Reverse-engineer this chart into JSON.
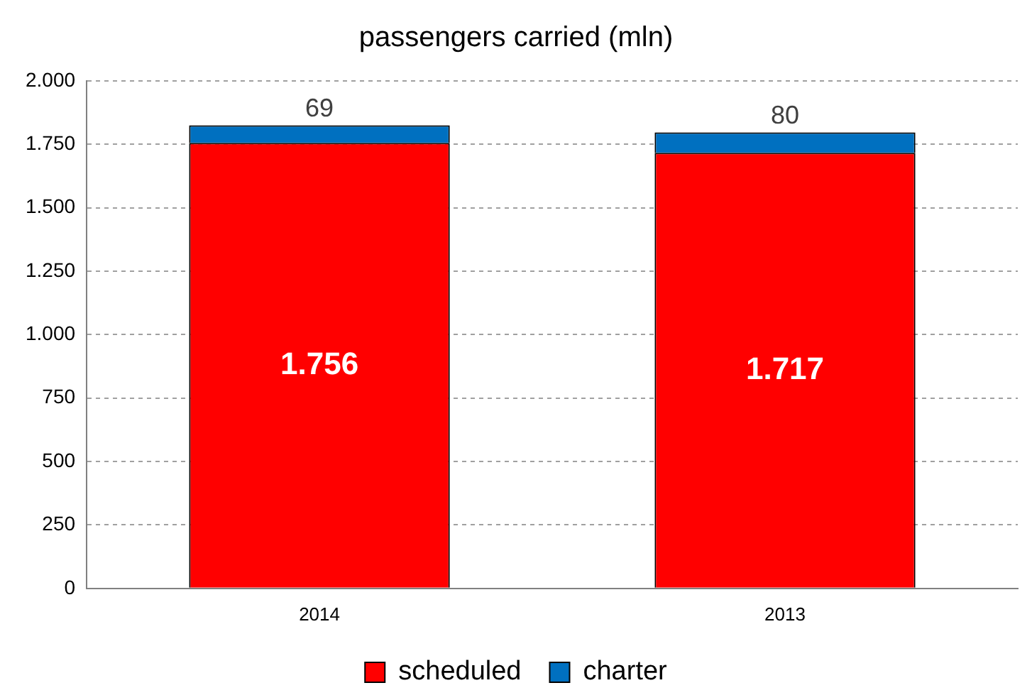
{
  "chart_data": {
    "type": "bar",
    "title": "passengers carried (mln)",
    "categories": [
      "2014",
      "2013"
    ],
    "stacked": true,
    "series": [
      {
        "name": "scheduled",
        "color": "#ff0000",
        "values": [
          1756,
          1717
        ],
        "value_labels": [
          "1.756",
          "1.717"
        ]
      },
      {
        "name": "charter",
        "color": "#0070c0",
        "values": [
          69,
          80
        ],
        "value_labels": [
          "69",
          "80"
        ]
      }
    ],
    "ylim": [
      0,
      2000
    ],
    "yticks": [
      0,
      {
        "value": 250,
        "label": "250"
      },
      {
        "value": 500,
        "label": "500"
      },
      {
        "value": 750,
        "label": "750"
      },
      {
        "value": 1000,
        "label": "1.000"
      },
      {
        "value": 1250,
        "label": "1.250"
      },
      {
        "value": 1500,
        "label": "1.500"
      },
      {
        "value": 1750,
        "label": "1.750"
      },
      {
        "value": 2000,
        "label": "2.000"
      }
    ],
    "grid": "y",
    "legend": "bottom"
  }
}
